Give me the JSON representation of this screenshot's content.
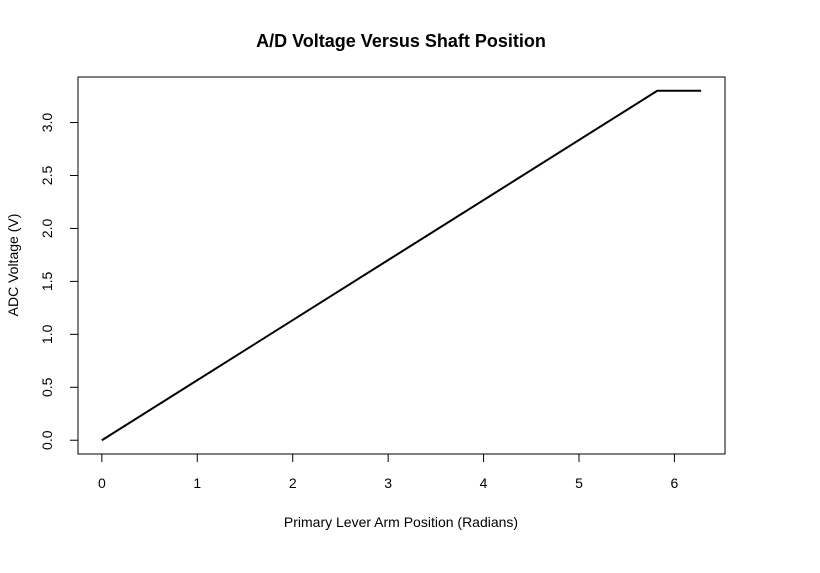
{
  "chart_data": {
    "type": "line",
    "title": "A/D Voltage Versus Shaft Position",
    "xlabel": "Primary Lever Arm Position (Radians)",
    "ylabel": "ADC Voltage (V)",
    "xlim": [
      -0.25,
      6.53
    ],
    "ylim": [
      -0.13,
      3.43
    ],
    "x_ticks": [
      0,
      1,
      2,
      3,
      4,
      5,
      6
    ],
    "y_ticks": [
      0.0,
      0.5,
      1.0,
      1.5,
      2.0,
      2.5,
      3.0
    ],
    "x_tick_labels": [
      "0",
      "1",
      "2",
      "3",
      "4",
      "5",
      "6"
    ],
    "y_tick_labels": [
      "0.0",
      "0.5",
      "1.0",
      "1.5",
      "2.0",
      "2.5",
      "3.0"
    ],
    "grid": false,
    "legend": "none",
    "series": [
      {
        "color": "#000000",
        "x": [
          0,
          5.82,
          6.28
        ],
        "y": [
          0.0,
          3.3,
          3.3
        ]
      }
    ]
  }
}
